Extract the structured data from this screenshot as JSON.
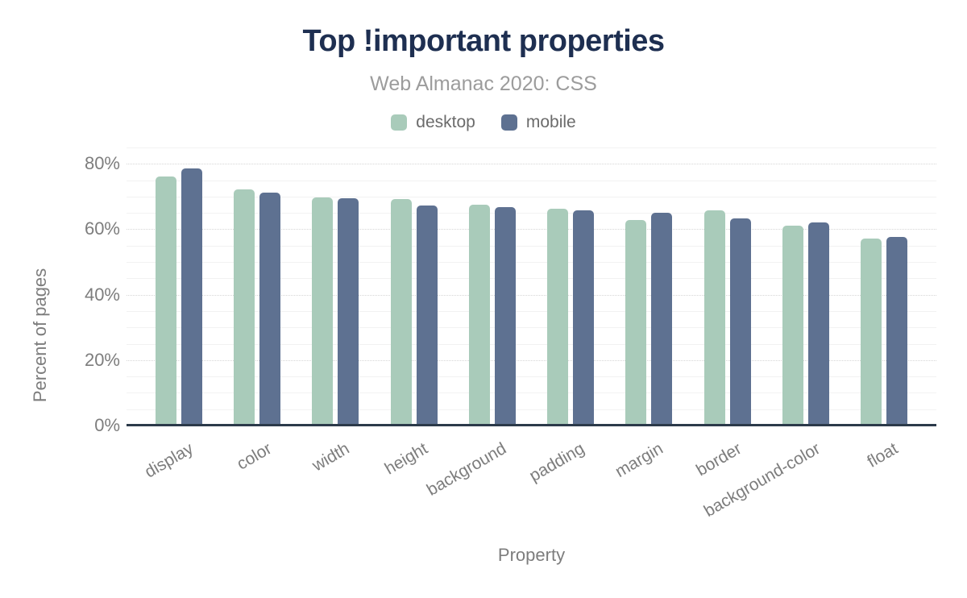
{
  "header": {
    "title": "Top !important properties",
    "subtitle": "Web Almanac 2020: CSS"
  },
  "colors": {
    "title": "#1e2f51",
    "subtitle_text": "#9c9c9c",
    "axis_text": "#7d7d7d",
    "axis_line": "#2c3a4a",
    "grid_major": "#d6d6d6",
    "grid_minor": "#f2f2f2",
    "desktop": "#a9cbba",
    "mobile": "#5e7191"
  },
  "chart_data": {
    "type": "bar",
    "title": "Top !important properties",
    "subtitle": "Web Almanac 2020: CSS",
    "categories": [
      "display",
      "color",
      "width",
      "height",
      "background",
      "padding",
      "margin",
      "border",
      "background-color",
      "float"
    ],
    "series": [
      {
        "name": "desktop",
        "color": "#a9cbba",
        "values": [
          76.1,
          72.1,
          69.8,
          69.3,
          67.4,
          66.4,
          62.9,
          65.8,
          61.1,
          57.2
        ]
      },
      {
        "name": "mobile",
        "color": "#5e7191",
        "values": [
          78.6,
          71.2,
          69.6,
          67.3,
          66.8,
          65.9,
          65.1,
          63.3,
          62.1,
          57.6
        ]
      }
    ],
    "xlabel": "Property",
    "ylabel": "Percent of pages",
    "ylim": [
      0,
      85
    ],
    "yticks": [
      0,
      20,
      40,
      60,
      80
    ],
    "ytick_labels": [
      "0%",
      "20%",
      "40%",
      "60%",
      "80%"
    ],
    "ytick_format": "percent",
    "minor_grid_step": 5,
    "grid": true,
    "legend_position": "top"
  }
}
